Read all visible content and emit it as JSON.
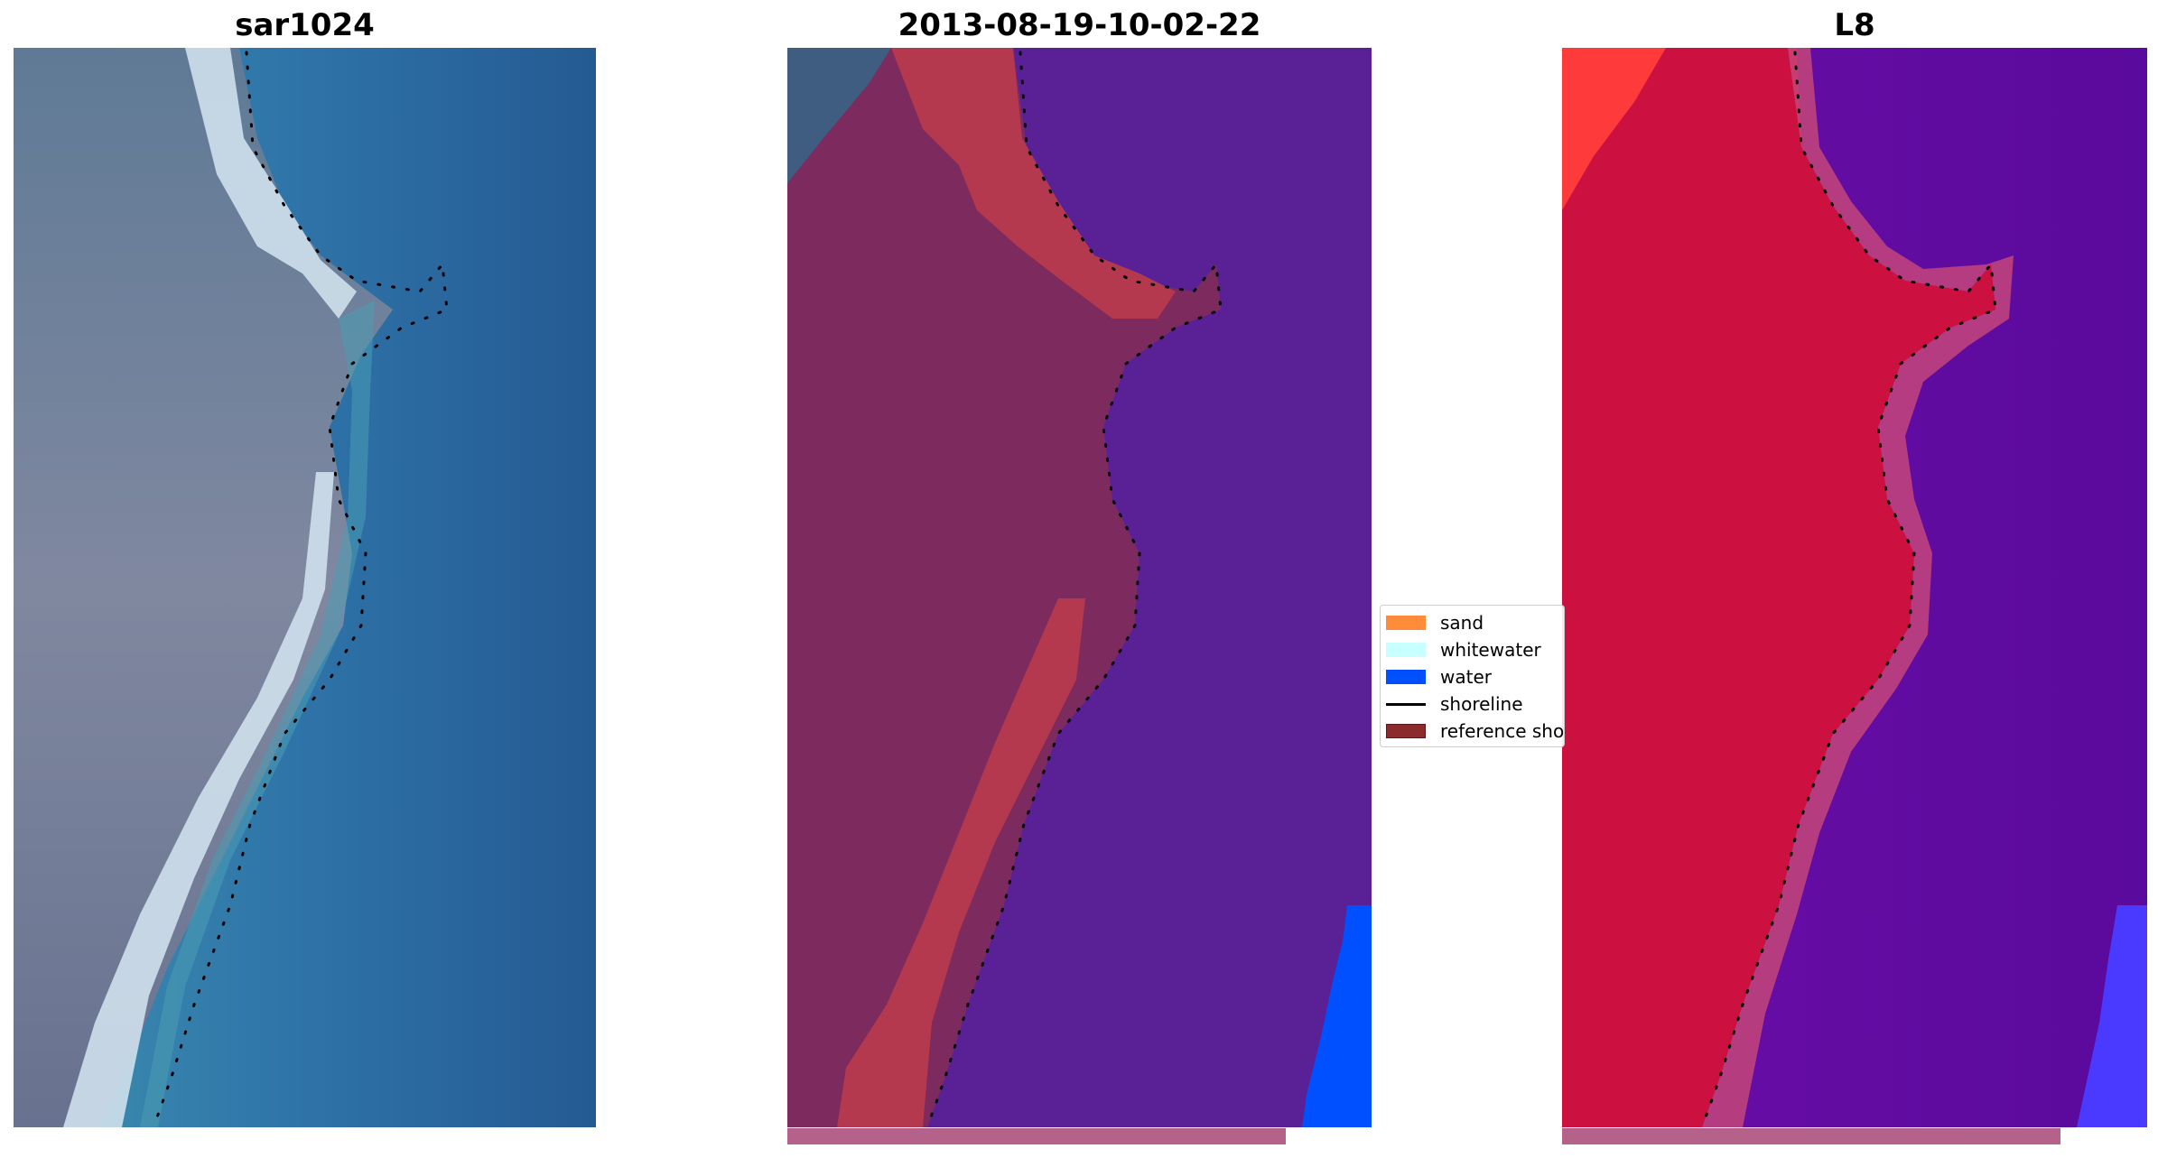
{
  "panels": [
    {
      "title": "sar1024"
    },
    {
      "title": "2013-08-19-10-02-22"
    },
    {
      "title": "L8"
    }
  ],
  "legend": {
    "items": [
      {
        "label": "sand",
        "kind": "patch",
        "color": "#ff8c3a"
      },
      {
        "label": "whitewater",
        "kind": "patch",
        "color": "#c8ffff"
      },
      {
        "label": "water",
        "kind": "patch",
        "color": "#0050ff"
      },
      {
        "label": "shoreline",
        "kind": "line",
        "color": "#000000"
      },
      {
        "label": "reference shoreline",
        "kind": "patch",
        "color": "#8b2b2b"
      }
    ]
  },
  "colors": {
    "land_rgb": "#6f7d95",
    "beach_rgb": "#d8e6f0",
    "ocean_rgb": "#2a6fa6",
    "classified_land": "#7d2a5e",
    "classified_sand": "#b4394f",
    "classified_water": "#5a2096",
    "classified_bright_water": "#0050ff",
    "l8_land": "#cc1040",
    "l8_water": "#620aa0",
    "scalebar": "#b4628a"
  }
}
